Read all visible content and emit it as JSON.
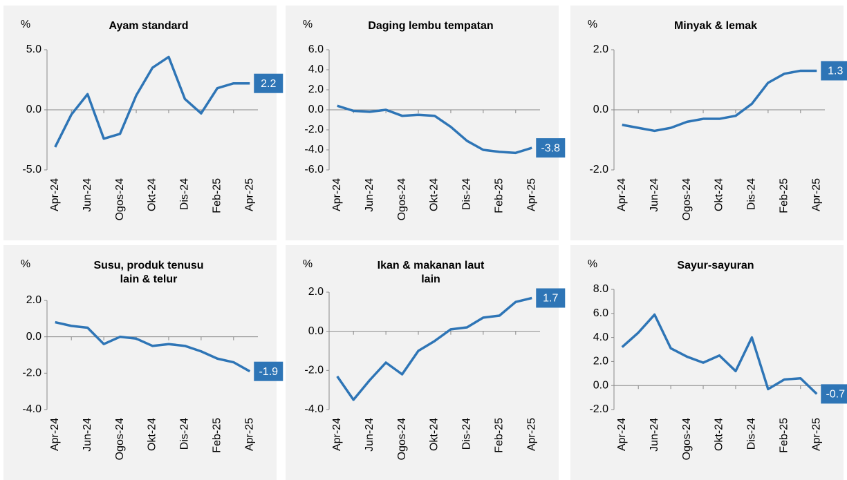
{
  "chart_data": [
    {
      "type": "line",
      "title": [
        "Ayam standard"
      ],
      "ylabel": "%",
      "categories": [
        "Apr-24",
        null,
        "Jun-24",
        null,
        "Ogos-24",
        null,
        "Okt-24",
        null,
        "Dis-24",
        null,
        "Feb-25",
        null,
        "Apr-25"
      ],
      "values": [
        -3.1,
        -0.4,
        1.3,
        -2.4,
        -2.0,
        1.2,
        3.5,
        4.4,
        0.9,
        -0.3,
        1.8,
        2.2,
        2.2
      ],
      "color": "#2e75b6",
      "ylim": [
        -5,
        5
      ],
      "yticks": [
        {
          "value": -5,
          "label": "-5.0"
        },
        {
          "value": 0,
          "label": "0.0"
        },
        {
          "value": 5,
          "label": "5.0"
        }
      ]
    },
    {
      "type": "line",
      "title": [
        "Daging lembu tempatan"
      ],
      "ylabel": "%",
      "categories": [
        "Apr-24",
        null,
        "Jun-24",
        null,
        "Ogos-24",
        null,
        "Okt-24",
        null,
        "Dis-24",
        null,
        "Feb-25",
        null,
        "Apr-25"
      ],
      "values": [
        0.4,
        -0.1,
        -0.2,
        0.0,
        -0.6,
        -0.5,
        -0.6,
        -1.7,
        -3.1,
        -4.0,
        -4.2,
        -4.3,
        -3.8
      ],
      "color": "#2e75b6",
      "ylim": [
        -6,
        6
      ],
      "yticks": [
        {
          "value": -6,
          "label": "-6.0"
        },
        {
          "value": -4,
          "label": "-4.0"
        },
        {
          "value": -2,
          "label": "-2.0"
        },
        {
          "value": 0,
          "label": "0.0"
        },
        {
          "value": 2,
          "label": "2.0"
        },
        {
          "value": 4,
          "label": "4.0"
        },
        {
          "value": 6,
          "label": "6.0"
        }
      ]
    },
    {
      "type": "line",
      "title": [
        "Minyak & lemak"
      ],
      "ylabel": "%",
      "categories": [
        "Apr-24",
        null,
        "Jun-24",
        null,
        "Ogos-24",
        null,
        "Okt-24",
        null,
        "Dis-24",
        null,
        "Feb-25",
        null,
        "Apr-25"
      ],
      "values": [
        -0.5,
        -0.6,
        -0.7,
        -0.6,
        -0.4,
        -0.3,
        -0.3,
        -0.2,
        0.2,
        0.9,
        1.2,
        1.3,
        1.3
      ],
      "color": "#2e75b6",
      "ylim": [
        -2,
        2
      ],
      "yticks": [
        {
          "value": -2,
          "label": "-2.0"
        },
        {
          "value": 0,
          "label": "0.0"
        },
        {
          "value": 2,
          "label": "2.0"
        }
      ]
    },
    {
      "type": "line",
      "title": [
        "Susu, produk tenusu",
        "lain & telur"
      ],
      "ylabel": "%",
      "categories": [
        "Apr-24",
        null,
        "Jun-24",
        null,
        "Ogos-24",
        null,
        "Okt-24",
        null,
        "Dis-24",
        null,
        "Feb-25",
        null,
        "Apr-25"
      ],
      "values": [
        0.8,
        0.6,
        0.5,
        -0.4,
        0.0,
        -0.1,
        -0.5,
        -0.4,
        -0.5,
        -0.8,
        -1.2,
        -1.4,
        -1.9
      ],
      "color": "#2e75b6",
      "ylim": [
        -4,
        2
      ],
      "yticks": [
        {
          "value": -4,
          "label": "-4.0"
        },
        {
          "value": -2,
          "label": "-2.0"
        },
        {
          "value": 0,
          "label": "0.0"
        },
        {
          "value": 2,
          "label": "2.0"
        }
      ]
    },
    {
      "type": "line",
      "title": [
        "Ikan & makanan laut",
        "lain"
      ],
      "ylabel": "%",
      "categories": [
        "Apr-24",
        null,
        "Jun-24",
        null,
        "Ogos-24",
        null,
        "Okt-24",
        null,
        "Dis-24",
        null,
        "Feb-25",
        null,
        "Apr-25"
      ],
      "values": [
        -2.3,
        -3.5,
        -2.5,
        -1.6,
        -2.2,
        -1.0,
        -0.5,
        0.1,
        0.2,
        0.7,
        0.8,
        1.5,
        1.7
      ],
      "color": "#2e75b6",
      "ylim": [
        -4,
        2
      ],
      "yticks": [
        {
          "value": -4,
          "label": "-4.0"
        },
        {
          "value": -2,
          "label": "-2.0"
        },
        {
          "value": 0,
          "label": "0.0"
        },
        {
          "value": 2,
          "label": "2.0"
        }
      ]
    },
    {
      "type": "line",
      "title": [
        "Sayur-sayuran"
      ],
      "ylabel": "%",
      "categories": [
        "Apr-24",
        null,
        "Jun-24",
        null,
        "Ogos-24",
        null,
        "Okt-24",
        null,
        "Dis-24",
        null,
        "Feb-25",
        null,
        "Apr-25"
      ],
      "values": [
        3.2,
        4.4,
        5.9,
        3.1,
        2.4,
        1.9,
        2.5,
        1.2,
        4.0,
        -0.3,
        0.5,
        0.6,
        -0.7
      ],
      "color": "#2e75b6",
      "ylim": [
        -2,
        8
      ],
      "yticks": [
        {
          "value": -2,
          "label": "-2.0"
        },
        {
          "value": 0,
          "label": "0.0"
        },
        {
          "value": 2,
          "label": "2.0"
        },
        {
          "value": 4,
          "label": "4.0"
        },
        {
          "value": 6,
          "label": "6.0"
        },
        {
          "value": 8,
          "label": "8.0"
        }
      ]
    }
  ]
}
